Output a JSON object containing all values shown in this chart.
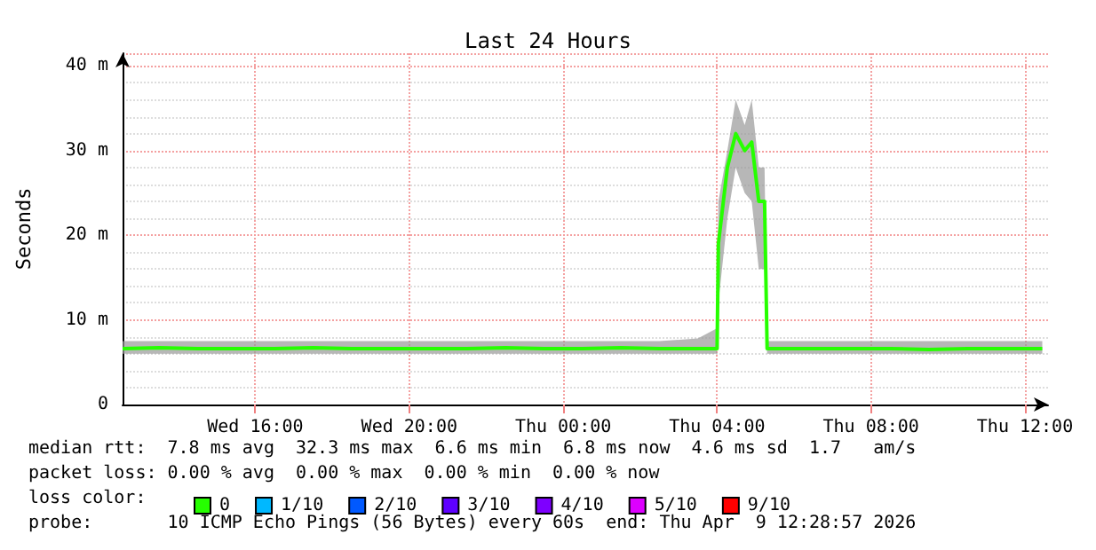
{
  "chart_data": {
    "type": "line",
    "title": "Last 24 Hours",
    "ylabel": "Seconds",
    "legend_title": "loss color:",
    "legend": "bottom",
    "annotations": [
      "median rtt:  7.8 ms avg  32.3 ms max  6.6 ms min  6.8 ms now  4.6 ms sd  1.7   am/s",
      "packet loss: 0.00 % avg  0.00 % max  0.00 % min  0.00 % now",
      "probe:       10 ICMP Echo Pings (56 Bytes) every 60s  end: Thu Apr  9 12:28:57 2026"
    ],
    "xlim": [
      "2026-04-08T12:33",
      "2026-04-09T12:36"
    ],
    "xticks": [
      {
        "value": "2026-04-08T16:00",
        "label": "Wed 16:00"
      },
      {
        "value": "2026-04-08T20:00",
        "label": "Wed 20:00"
      },
      {
        "value": "2026-04-09T00:00",
        "label": "Thu 00:00"
      },
      {
        "value": "2026-04-09T04:00",
        "label": "Thu 04:00"
      },
      {
        "value": "2026-04-09T08:00",
        "label": "Thu 08:00"
      },
      {
        "value": "2026-04-09T12:00",
        "label": "Thu 12:00"
      }
    ],
    "ylim": [
      0,
      41.5
    ],
    "yticks": [
      0,
      {
        "value": 10,
        "label": "10 m"
      },
      {
        "value": 20,
        "label": "20 m"
      },
      {
        "value": 30,
        "label": "30 m"
      },
      {
        "value": 40,
        "label": "40 m"
      }
    ],
    "grid": true,
    "marker": "none",
    "line_style": "solid",
    "x": [
      "2026-04-08T12:33",
      "2026-04-08T13:30",
      "2026-04-08T14:30",
      "2026-04-08T15:30",
      "2026-04-08T16:30",
      "2026-04-08T17:30",
      "2026-04-08T18:30",
      "2026-04-08T19:30",
      "2026-04-08T20:30",
      "2026-04-08T21:30",
      "2026-04-08T22:30",
      "2026-04-08T23:30",
      "2026-04-09T00:30",
      "2026-04-09T01:30",
      "2026-04-09T02:30",
      "2026-04-09T03:30",
      "2026-04-09T04:00",
      "2026-04-09T04:02",
      "2026-04-09T04:16",
      "2026-04-09T04:29",
      "2026-04-09T04:43",
      "2026-04-09T04:54",
      "2026-04-09T05:05",
      "2026-04-09T05:14",
      "2026-04-09T05:18",
      "2026-04-09T06:30",
      "2026-04-09T07:30",
      "2026-04-09T08:30",
      "2026-04-09T09:30",
      "2026-04-09T10:30",
      "2026-04-09T11:30",
      "2026-04-09T12:27"
    ],
    "series": [
      {
        "name": "0",
        "color": "#26ff00",
        "values": [
          6.6,
          6.7,
          6.6,
          6.6,
          6.6,
          6.7,
          6.6,
          6.6,
          6.6,
          6.6,
          6.7,
          6.6,
          6.6,
          6.7,
          6.6,
          6.6,
          6.6,
          19,
          28,
          32,
          30,
          31,
          24,
          24,
          6.6,
          6.6,
          6.6,
          6.6,
          6.5,
          6.6,
          6.6,
          6.6
        ],
        "lower": [
          6,
          6,
          6,
          6,
          6,
          6,
          6,
          6,
          6,
          6,
          6,
          6,
          6,
          6,
          6,
          6,
          6,
          12,
          22,
          28,
          25,
          24,
          16,
          16,
          6,
          6,
          6,
          6,
          6,
          6,
          6,
          6
        ],
        "upper": [
          7.5,
          7.5,
          7.5,
          7.5,
          7.5,
          7.5,
          7.5,
          7.5,
          7.5,
          7.5,
          7.5,
          7.5,
          7.5,
          7.5,
          7.5,
          7.8,
          9,
          24,
          30,
          36,
          33,
          36,
          28,
          28,
          7.5,
          7.5,
          7.5,
          7.5,
          7.5,
          7.5,
          7.5,
          7.5
        ]
      },
      {
        "name": "1/10",
        "color": "#00b8ff",
        "values": [
          null,
          null,
          null,
          null,
          null,
          null,
          null,
          null,
          null,
          null,
          null,
          null,
          null,
          null,
          null,
          null,
          null,
          null,
          null,
          null,
          null,
          null,
          null,
          null,
          null,
          null,
          null,
          null,
          null,
          null,
          null,
          null
        ]
      },
      {
        "name": "2/10",
        "color": "#0059ff",
        "values": [
          null,
          null,
          null,
          null,
          null,
          null,
          null,
          null,
          null,
          null,
          null,
          null,
          null,
          null,
          null,
          null,
          null,
          null,
          null,
          null,
          null,
          null,
          null,
          null,
          null,
          null,
          null,
          null,
          null,
          null,
          null,
          null
        ]
      },
      {
        "name": "3/10",
        "color": "#5e00ff",
        "values": [
          null,
          null,
          null,
          null,
          null,
          null,
          null,
          null,
          null,
          null,
          null,
          null,
          null,
          null,
          null,
          null,
          null,
          null,
          null,
          null,
          null,
          null,
          null,
          null,
          null,
          null,
          null,
          null,
          null,
          null,
          null,
          null
        ]
      },
      {
        "name": "4/10",
        "color": "#7e00ff",
        "values": [
          null,
          null,
          null,
          null,
          null,
          null,
          null,
          null,
          null,
          null,
          null,
          null,
          null,
          null,
          null,
          null,
          null,
          null,
          null,
          null,
          null,
          null,
          null,
          null,
          null,
          null,
          null,
          null,
          null,
          null,
          null,
          null
        ]
      },
      {
        "name": "5/10",
        "color": "#dd00ff",
        "values": [
          null,
          null,
          null,
          null,
          null,
          null,
          null,
          null,
          null,
          null,
          null,
          null,
          null,
          null,
          null,
          null,
          null,
          null,
          null,
          null,
          null,
          null,
          null,
          null,
          null,
          null,
          null,
          null,
          null,
          null,
          null,
          null
        ]
      },
      {
        "name": "9/10",
        "color": "#ff0000",
        "values": [
          null,
          null,
          null,
          null,
          null,
          null,
          null,
          null,
          null,
          null,
          null,
          null,
          null,
          null,
          null,
          null,
          null,
          null,
          null,
          null,
          null,
          null,
          null,
          null,
          null,
          null,
          null,
          null,
          null,
          null,
          null,
          null
        ]
      }
    ]
  }
}
